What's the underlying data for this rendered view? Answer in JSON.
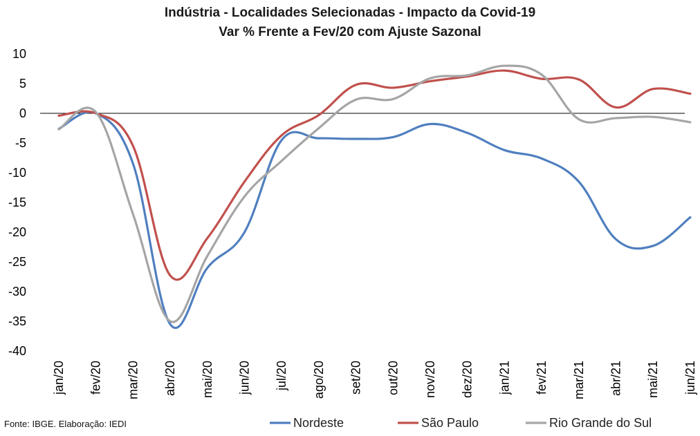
{
  "chart_data": {
    "type": "line",
    "title": "Indústria - Localidades Selecionadas - Impacto da Covid-19",
    "subtitle": "Var % Frente a Fev/20 com Ajuste Sazonal",
    "categories": [
      "jan/20",
      "fev/20",
      "mar/20",
      "abr/20",
      "mai/20",
      "jun/20",
      "jul/20",
      "ago/20",
      "set/20",
      "out/20",
      "nov/20",
      "dez/20",
      "jan/21",
      "fev/21",
      "mar/21",
      "abr/21",
      "mai/21",
      "jun/21"
    ],
    "ylim": [
      -40,
      10
    ],
    "yticks": [
      10,
      5,
      0,
      -5,
      -10,
      -15,
      -20,
      -25,
      -30,
      -35,
      -40
    ],
    "grid": false,
    "zero_line": true,
    "legend_position": "bottom",
    "series": [
      {
        "name": "Nordeste",
        "color": "#4f7fbf",
        "values": [
          -2.6,
          0.0,
          -8.5,
          -35.5,
          -26.0,
          -20.0,
          -4.5,
          -4.2,
          -4.3,
          -4.0,
          -1.8,
          -3.3,
          -6.2,
          -7.6,
          -11.5,
          -21.2,
          -22.3,
          -17.5
        ]
      },
      {
        "name": "São Paulo",
        "color": "#c0504d",
        "values": [
          -0.4,
          0.0,
          -5.5,
          -27.3,
          -21.0,
          -11.5,
          -3.7,
          -0.3,
          4.8,
          4.3,
          5.4,
          6.2,
          7.2,
          5.8,
          5.7,
          1.0,
          4.1,
          3.3
        ]
      },
      {
        "name": "Rio Grande do Sul",
        "color": "#a5a5a5",
        "values": [
          -2.7,
          0.2,
          -17.0,
          -35.0,
          -24.0,
          -14.0,
          -8.0,
          -2.5,
          2.3,
          2.4,
          5.9,
          6.4,
          8.0,
          6.5,
          -1.0,
          -0.8,
          -0.6,
          -1.5
        ]
      }
    ],
    "source": "Fonte: IBGE. Elaboração: IEDI"
  }
}
